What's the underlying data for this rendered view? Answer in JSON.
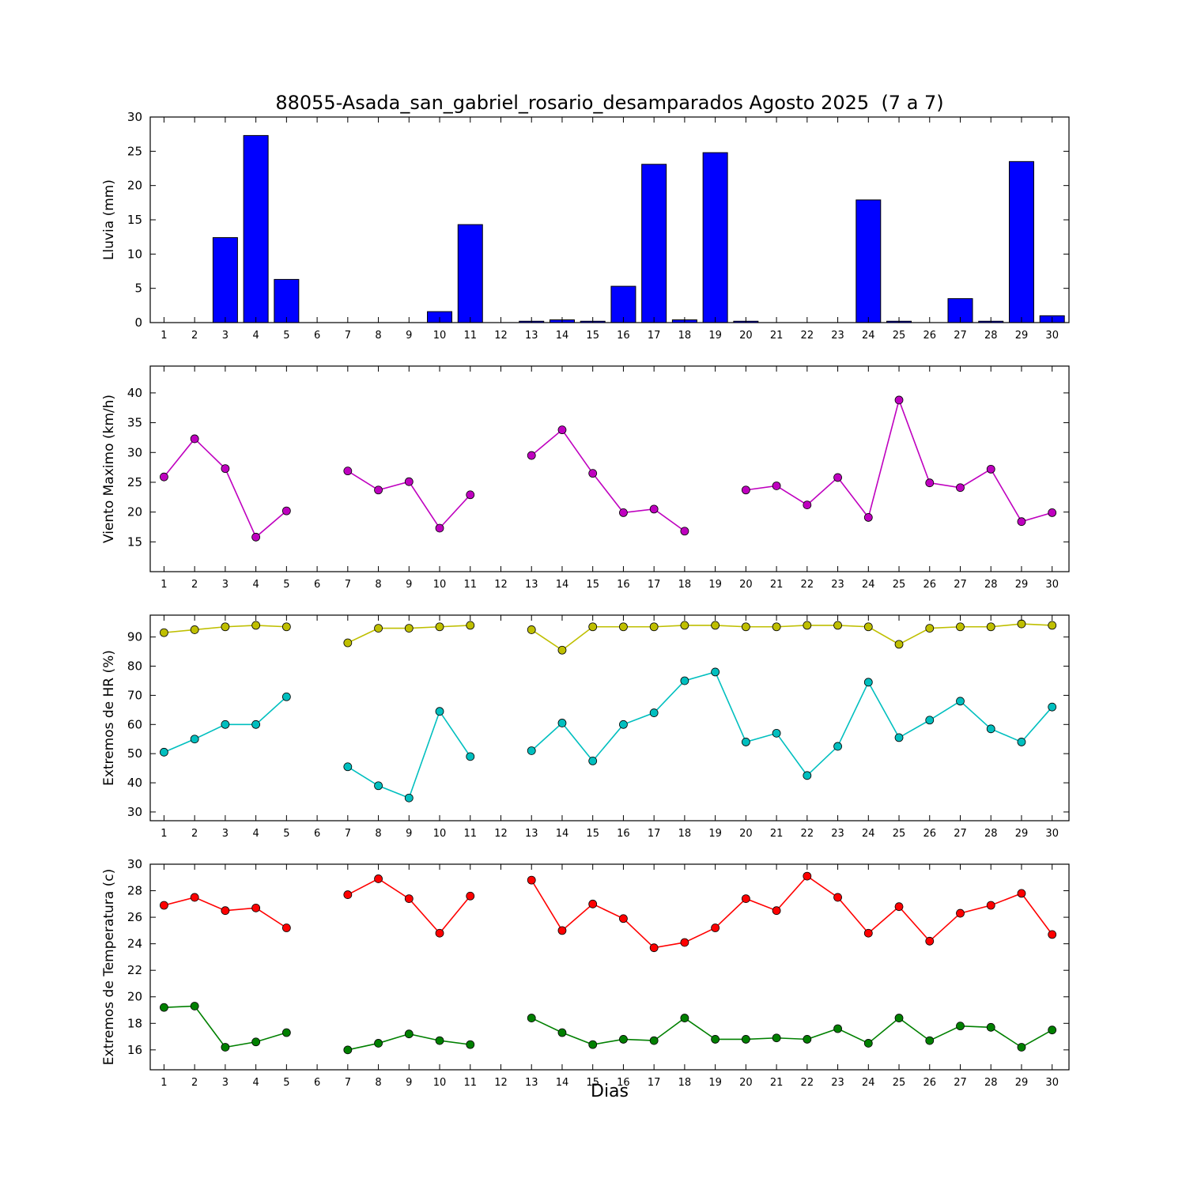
{
  "figure": {
    "title": "88055-Asada_san_gabriel_rosario_desamparados Agosto 2025  (7 a 7)",
    "xlabel": "Dias",
    "background": "#ffffff",
    "axis_color": "#000000"
  },
  "chart_data": [
    {
      "type": "bar",
      "name": "lluvia",
      "ylabel": "Lluvia (mm)",
      "color": "#0000ff",
      "bar_edge_color": "#000000",
      "grid": false,
      "x": [
        1,
        2,
        3,
        4,
        5,
        6,
        7,
        8,
        9,
        10,
        11,
        12,
        13,
        14,
        15,
        16,
        17,
        18,
        19,
        20,
        21,
        22,
        23,
        24,
        25,
        26,
        27,
        28,
        29,
        30
      ],
      "values": [
        0,
        0,
        12.4,
        27.3,
        6.3,
        0,
        0,
        0,
        0,
        1.6,
        14.3,
        0,
        0.2,
        0.4,
        0.2,
        5.3,
        23.1,
        0.4,
        24.8,
        0.2,
        0,
        0,
        0,
        17.9,
        0.2,
        0,
        3.5,
        0.2,
        23.5,
        1.0
      ],
      "ylim": [
        0,
        30
      ],
      "yticks": [
        0,
        5,
        10,
        15,
        20,
        25,
        30
      ]
    },
    {
      "type": "line",
      "name": "viento",
      "ylabel": "Viento Maximo (km/h)",
      "grid": false,
      "x": [
        1,
        2,
        3,
        4,
        5,
        6,
        7,
        8,
        9,
        10,
        11,
        12,
        13,
        14,
        15,
        16,
        17,
        18,
        19,
        20,
        21,
        22,
        23,
        24,
        25,
        26,
        27,
        28,
        29,
        30
      ],
      "series": [
        {
          "name": "viento-maximo",
          "color": "#bf00bf",
          "values": [
            25.9,
            32.3,
            27.3,
            15.8,
            20.2,
            null,
            26.9,
            23.7,
            25.1,
            17.3,
            22.9,
            null,
            29.5,
            33.8,
            26.5,
            19.9,
            20.5,
            16.8,
            null,
            23.7,
            24.4,
            21.2,
            25.8,
            19.1,
            38.8,
            24.9,
            24.1,
            27.2,
            18.4,
            19.9
          ]
        }
      ],
      "ylim": [
        10,
        44.5
      ],
      "yticks": [
        15,
        20,
        25,
        30,
        35,
        40
      ]
    },
    {
      "type": "line",
      "name": "hr",
      "ylabel": "Extremos de HR (%)",
      "grid": false,
      "x": [
        1,
        2,
        3,
        4,
        5,
        6,
        7,
        8,
        9,
        10,
        11,
        12,
        13,
        14,
        15,
        16,
        17,
        18,
        19,
        20,
        21,
        22,
        23,
        24,
        25,
        26,
        27,
        28,
        29,
        30
      ],
      "series": [
        {
          "name": "hr-maxima",
          "color": "#bfbf00",
          "values": [
            91.5,
            92.5,
            93.5,
            94.0,
            93.5,
            null,
            88.0,
            93.0,
            93.0,
            93.5,
            94.0,
            null,
            92.5,
            85.5,
            93.5,
            93.5,
            93.5,
            94.0,
            94.0,
            93.5,
            93.5,
            94.0,
            94.0,
            93.5,
            87.5,
            93.0,
            93.5,
            93.5,
            94.5,
            94.0
          ]
        },
        {
          "name": "hr-minima",
          "color": "#00bfbf",
          "values": [
            50.5,
            55.0,
            60.0,
            60.0,
            69.5,
            null,
            45.5,
            39.0,
            34.8,
            64.5,
            49.0,
            null,
            51.0,
            60.5,
            47.5,
            60.0,
            64.0,
            75.0,
            78.0,
            54.0,
            57.0,
            42.5,
            52.5,
            74.5,
            55.5,
            61.5,
            68.0,
            58.5,
            54.0,
            66.0
          ]
        }
      ],
      "ylim": [
        27,
        97.5
      ],
      "yticks": [
        30,
        40,
        50,
        60,
        70,
        80,
        90
      ]
    },
    {
      "type": "line",
      "name": "temperatura",
      "ylabel": "Extremos de Temperatura (c)",
      "grid": false,
      "x": [
        1,
        2,
        3,
        4,
        5,
        6,
        7,
        8,
        9,
        10,
        11,
        12,
        13,
        14,
        15,
        16,
        17,
        18,
        19,
        20,
        21,
        22,
        23,
        24,
        25,
        26,
        27,
        28,
        29,
        30
      ],
      "series": [
        {
          "name": "temperatura-maxima",
          "color": "#ff0000",
          "values": [
            26.9,
            27.5,
            26.5,
            26.7,
            25.2,
            null,
            27.7,
            28.9,
            27.4,
            24.8,
            27.6,
            null,
            28.8,
            25.0,
            27.0,
            25.9,
            23.7,
            24.1,
            25.2,
            27.4,
            26.5,
            29.1,
            27.5,
            24.8,
            26.8,
            24.2,
            26.3,
            26.9,
            27.8,
            24.7
          ]
        },
        {
          "name": "temperatura-minima",
          "color": "#008000",
          "values": [
            19.2,
            19.3,
            16.2,
            16.6,
            17.3,
            null,
            16.0,
            16.5,
            17.2,
            16.7,
            16.4,
            null,
            18.4,
            17.3,
            16.4,
            16.8,
            16.7,
            18.4,
            16.8,
            16.8,
            16.9,
            16.8,
            17.6,
            16.5,
            18.4,
            16.7,
            17.8,
            17.7,
            16.2,
            17.5
          ]
        }
      ],
      "ylim": [
        14.5,
        30
      ],
      "yticks": [
        16,
        18,
        20,
        22,
        24,
        26,
        28,
        30
      ]
    }
  ]
}
